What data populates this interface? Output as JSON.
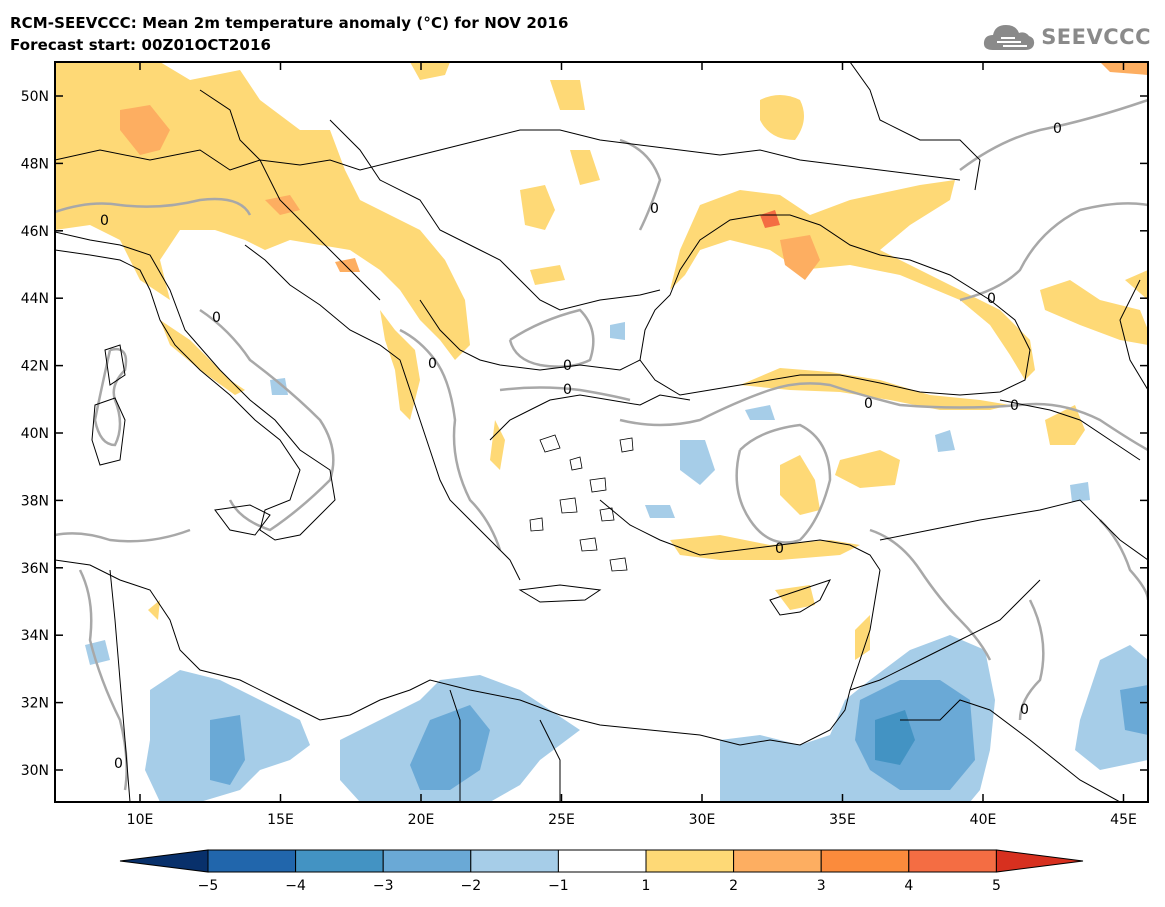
{
  "header": {
    "title": "RCM-SEEVCCC: Mean 2m temperature anomaly (°C) for NOV 2016",
    "subtitle": "Forecast start: 00Z01OCT2016"
  },
  "logo": {
    "text": "SEEVCCC",
    "icon": "cloud-icon",
    "color": "#8a8a8a"
  },
  "map": {
    "lat_ticks": [
      "50N",
      "48N",
      "46N",
      "44N",
      "42N",
      "40N",
      "38N",
      "36N",
      "34N",
      "32N",
      "30N"
    ],
    "lon_ticks": [
      "10E",
      "15E",
      "20E",
      "25E",
      "30E",
      "35E",
      "40E",
      "45E"
    ],
    "contour_label": "0",
    "contour_color": "#a8a8a8",
    "border_color": "#000000"
  },
  "colorbar": {
    "labels": [
      "−5",
      "−4",
      "−3",
      "−2",
      "−1",
      "1",
      "2",
      "3",
      "4",
      "5"
    ],
    "colors": [
      "#08306b",
      "#2166ac",
      "#4393c3",
      "#6aa9d6",
      "#a6cde8",
      "#ffffff",
      "#fed976",
      "#fdae61",
      "#fb8b3c",
      "#f46d43",
      "#d7301f",
      "#d7301f"
    ]
  }
}
